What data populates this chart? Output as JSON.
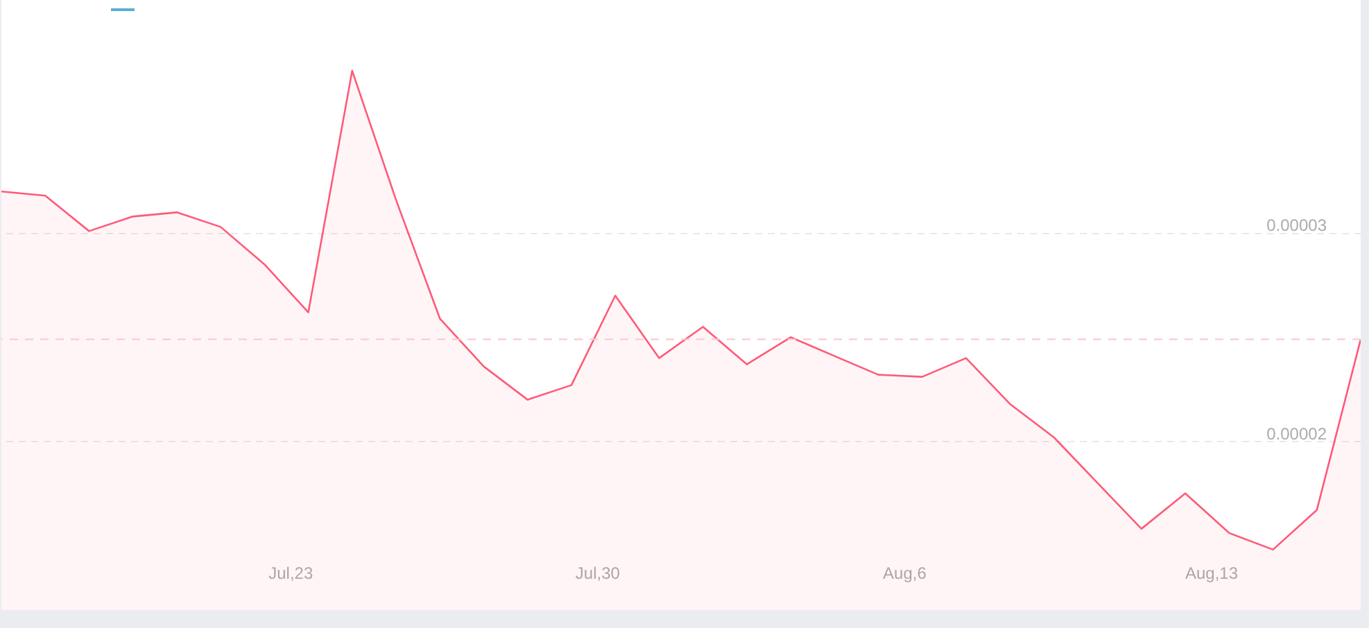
{
  "chart_data": {
    "type": "area",
    "x": [
      "--07-16T10:00",
      "--07-17T10:00",
      "--07-18T10:00",
      "--07-19T10:00",
      "--07-20T10:00",
      "--07-21T10:00",
      "--07-22T10:00",
      "--07-23T10:00",
      "--07-24T10:00",
      "--07-25T10:00",
      "--07-26T10:00",
      "--07-27T10:00",
      "--07-28T10:00",
      "--07-29T10:00",
      "--07-30T10:00",
      "--07-31T10:00",
      "--08-01T10:00",
      "--08-02T10:00",
      "--08-03T10:00",
      "--08-04T10:00",
      "--08-05T10:00",
      "--08-06T10:00",
      "--08-07T10:00",
      "--08-08T10:00",
      "--08-09T10:00",
      "--08-10T10:00",
      "--08-11T10:00",
      "--08-12T10:00",
      "--08-13T10:00",
      "--08-14T10:00",
      "--08-15T10:00",
      "--08-16T10:00"
    ],
    "series": [
      {
        "color": "#fe5a78",
        "values": [
          3.2e-05,
          3.18e-05,
          3.01e-05,
          3.08e-05,
          3.1e-05,
          3.03e-05,
          2.85e-05,
          2.62e-05,
          3.78e-05,
          3.16e-05,
          2.59e-05,
          2.36e-05,
          2.2e-05,
          2.27e-05,
          2.7e-05,
          2.4e-05,
          2.55e-05,
          2.37e-05,
          2.5e-05,
          2.41e-05,
          2.32e-05,
          2.31e-05,
          2.4e-05,
          2.18e-05,
          2.02e-05,
          1.8e-05,
          1.58e-05,
          1.75e-05,
          1.56e-05,
          1.48e-05,
          1.67e-05,
          2.49e-05
        ]
      }
    ],
    "xlim": [
      "--07-16T10:00",
      "--08-16T10:00"
    ],
    "xticks": [
      {
        "value": "--07-23",
        "label": "Jul,23"
      },
      {
        "value": "--07-30",
        "label": "Jul,30"
      },
      {
        "value": "--08-06",
        "label": "Aug,6"
      },
      {
        "value": "--08-13",
        "label": "Aug,13"
      }
    ],
    "ylim": [
      1.19e-05,
      4.12e-05
    ],
    "yticks": [
      {
        "value": 2e-05,
        "label": "0.00002"
      },
      {
        "value": 3e-05,
        "label": "0.00003"
      }
    ],
    "grid": "y",
    "ref_lines": [
      {
        "axis": "y",
        "value": 2.49e-05,
        "color": "#ffc4cf",
        "line_style": "dashed"
      }
    ]
  }
}
